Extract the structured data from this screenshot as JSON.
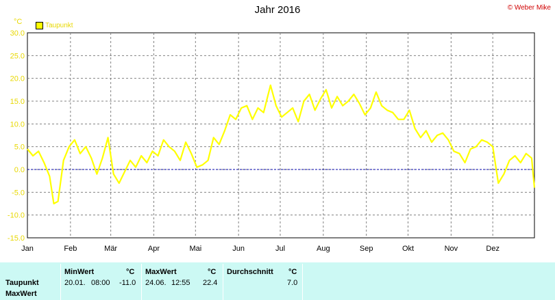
{
  "header": {
    "title": "Jahr 2016",
    "copyright": "© Weber Mike",
    "unit": "°C"
  },
  "legend": {
    "label": "Taupunkt"
  },
  "colors": {
    "series": "#ffff00",
    "axis_text": "#e8d800",
    "zero_line": "#0000aa",
    "grid": "#808080",
    "stats_bg": "#ccf9f4"
  },
  "chart_data": {
    "type": "line",
    "title": "Jahr 2016",
    "ylabel": "°C",
    "ylim": [
      -15,
      30
    ],
    "yticks": [
      "30.0",
      "25.0",
      "20.0",
      "15.0",
      "10.0",
      "5.0",
      "0.0",
      "-5.0",
      "-10.0",
      "-15.0"
    ],
    "months": [
      "Jan",
      "Feb",
      "Mär",
      "Apr",
      "Mai",
      "Jun",
      "Jul",
      "Aug",
      "Sep",
      "Okt",
      "Nov",
      "Dez"
    ],
    "grid": true,
    "legend_position": "top-left",
    "series": [
      {
        "name": "Taupunkt",
        "x_unit": "day of year",
        "x": [
          1,
          5,
          9,
          13,
          17,
          20,
          23,
          27,
          31,
          35,
          39,
          43,
          47,
          51,
          55,
          59,
          63,
          67,
          71,
          75,
          79,
          83,
          87,
          91,
          95,
          99,
          103,
          107,
          111,
          115,
          119,
          123,
          127,
          131,
          135,
          139,
          143,
          147,
          151,
          155,
          159,
          163,
          167,
          171,
          176,
          180,
          184,
          188,
          192,
          196,
          200,
          204,
          208,
          212,
          216,
          220,
          224,
          228,
          232,
          236,
          240,
          244,
          248,
          252,
          256,
          260,
          264,
          268,
          272,
          276,
          280,
          284,
          288,
          292,
          296,
          300,
          304,
          308,
          312,
          316,
          320,
          324,
          328,
          332,
          336,
          340,
          344,
          348,
          352,
          356,
          360,
          364,
          366
        ],
        "values": [
          4.5,
          3.0,
          4.0,
          1.5,
          -1.5,
          -7.5,
          -7.0,
          2.0,
          5.0,
          6.5,
          3.5,
          5.0,
          2.5,
          -1.0,
          2.5,
          7.0,
          -1.0,
          -3.0,
          -0.5,
          2.0,
          0.5,
          3.0,
          1.5,
          4.0,
          3.0,
          6.5,
          5.0,
          4.0,
          2.0,
          6.0,
          3.5,
          0.5,
          1.0,
          2.0,
          7.0,
          5.5,
          8.5,
          12.0,
          11.0,
          13.5,
          14.0,
          11.0,
          13.5,
          12.5,
          18.5,
          14.0,
          11.5,
          12.5,
          13.5,
          10.5,
          15.0,
          16.5,
          13.0,
          15.5,
          17.5,
          13.5,
          16.0,
          14.0,
          15.0,
          16.5,
          14.5,
          12.0,
          13.5,
          17.0,
          14.0,
          13.0,
          12.5,
          11.0,
          11.0,
          13.0,
          9.0,
          7.0,
          8.5,
          6.0,
          7.5,
          8.0,
          6.5,
          4.0,
          3.5,
          1.5,
          4.5,
          5.0,
          6.5,
          6.0,
          5.0,
          -3.0,
          -1.0,
          2.0,
          3.0,
          1.5,
          3.5,
          2.5,
          -4.0
        ]
      }
    ]
  },
  "stats": {
    "row_label_1": "Taupunkt",
    "row_label_2": "MaxWert",
    "min": {
      "header": "MinWert",
      "unit": "°C",
      "date": "20.01.",
      "time": "08:00",
      "value": "-11.0"
    },
    "max": {
      "header": "MaxWert",
      "unit": "°C",
      "date": "24.06.",
      "time": "12:55",
      "value": "22.4"
    },
    "avg": {
      "header": "Durchschnitt",
      "unit": "°C",
      "value": "7.0"
    }
  }
}
